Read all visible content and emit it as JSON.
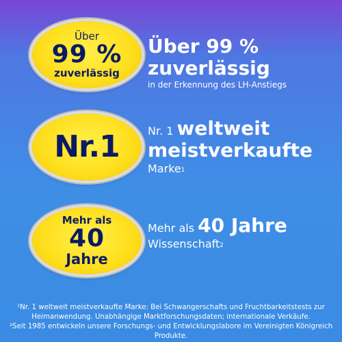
{
  "badges": {
    "b1": {
      "top": "Über",
      "main": "99 %",
      "bottom": "zuverlässig"
    },
    "b2": {
      "main": "Nr.1"
    },
    "b3": {
      "top": "Mehr als",
      "main": "40",
      "bottom": "Jahre"
    }
  },
  "features": {
    "f1": {
      "headline_line1": "Über 99 %",
      "headline_line2": "zuverlässig",
      "sub": "in der Erkennung des LH-Anstiegs"
    },
    "f2": {
      "prefix": "Nr. 1",
      "bold_line1": "weltweit",
      "bold_line2": "meistverkaufte",
      "suffix": "Marke",
      "footnote_mark": "1"
    },
    "f3": {
      "prefix": "Mehr als",
      "bold": "40 Jahre",
      "suffix": "Wissenschaft",
      "footnote_mark": "2"
    }
  },
  "footnotes": {
    "line1": "¹Nr. 1 weltweit meistverkaufte Marke: Bei Schwangerschafts und Fruchtbarkeitstests zur",
    "line2": "Heimanwendung. Unabhängige Marktforschungsdaten; internationale Verkäufe.",
    "line3": "²Seit 1985 entwickeln unsere Forschungs- und Entwicklungslabore im Vereinigten Königreich Produkte."
  },
  "colors": {
    "badge_yellow": "#ffe020",
    "badge_text": "#0c1a64",
    "background_top": "#7a45d6",
    "background_bottom": "#3a8be3"
  }
}
